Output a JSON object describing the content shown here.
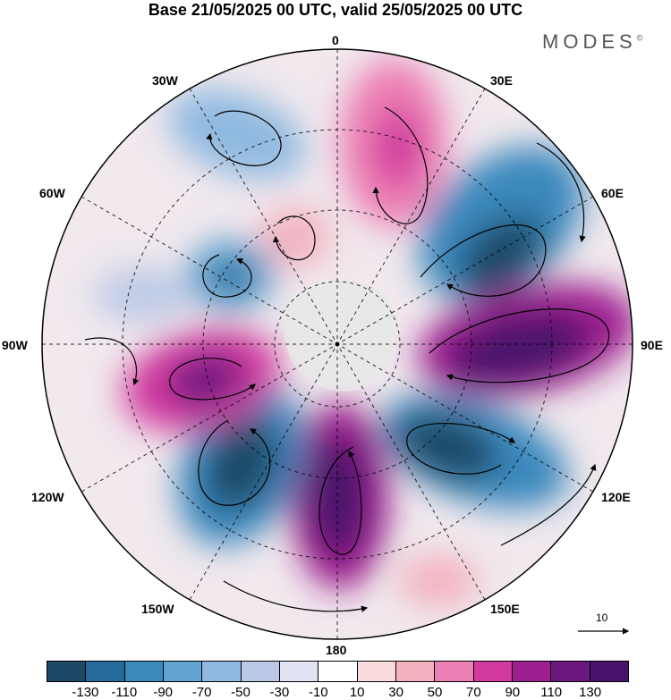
{
  "title": "Base 21/05/2025 00 UTC, valid 25/05/2025 00 UTC",
  "brand": "MODES",
  "brand_mark": "©",
  "longitude_labels": {
    "top": "0",
    "deg30e": "30E",
    "deg60e": "60E",
    "deg90e": "90E",
    "deg120e": "120E",
    "deg150e": "150E",
    "bottom": "180",
    "deg150w": "150W",
    "deg120w": "120W",
    "deg90w": "90W",
    "deg60w": "60W",
    "deg30w": "30W"
  },
  "reference_vector": {
    "value": "10"
  },
  "colorbar": {
    "colors": [
      "#1c4a66",
      "#246a9a",
      "#3b88bd",
      "#62a5d2",
      "#8fb9e0",
      "#bcc9e6",
      "#e1e3f2",
      "#ffffff",
      "#f9dadd",
      "#f3b2c0",
      "#ec7fb3",
      "#d23a9f",
      "#9e1f8f",
      "#6b1880",
      "#4a136b"
    ],
    "ticks": [
      "-130",
      "-110",
      "-90",
      "-70",
      "-50",
      "-30",
      "-10",
      "10",
      "30",
      "50",
      "70",
      "90",
      "110",
      "130"
    ]
  },
  "anomaly_centers": [
    {
      "name": "0e-north-positive",
      "lon": 20,
      "lat": 55,
      "value": 80
    },
    {
      "name": "30e-negative",
      "lon": 45,
      "lat": 48,
      "value": -110
    },
    {
      "name": "90e-positive",
      "lon": 90,
      "lat": 45,
      "value": 130
    },
    {
      "name": "120e-negative",
      "lon": 130,
      "lat": 50,
      "value": -130
    },
    {
      "name": "180-positive",
      "lon": 175,
      "lat": 52,
      "value": 130
    },
    {
      "name": "150w-negative",
      "lon": -145,
      "lat": 50,
      "value": -130
    },
    {
      "name": "90w-positive",
      "lon": -100,
      "lat": 52,
      "value": 120
    },
    {
      "name": "60w-negative",
      "lon": -60,
      "lat": 62,
      "value": -60
    },
    {
      "name": "30w-negative",
      "lon": -35,
      "lat": 48,
      "value": -40
    },
    {
      "name": "polar-positive",
      "lon": -20,
      "lat": 72,
      "value": 40
    }
  ]
}
